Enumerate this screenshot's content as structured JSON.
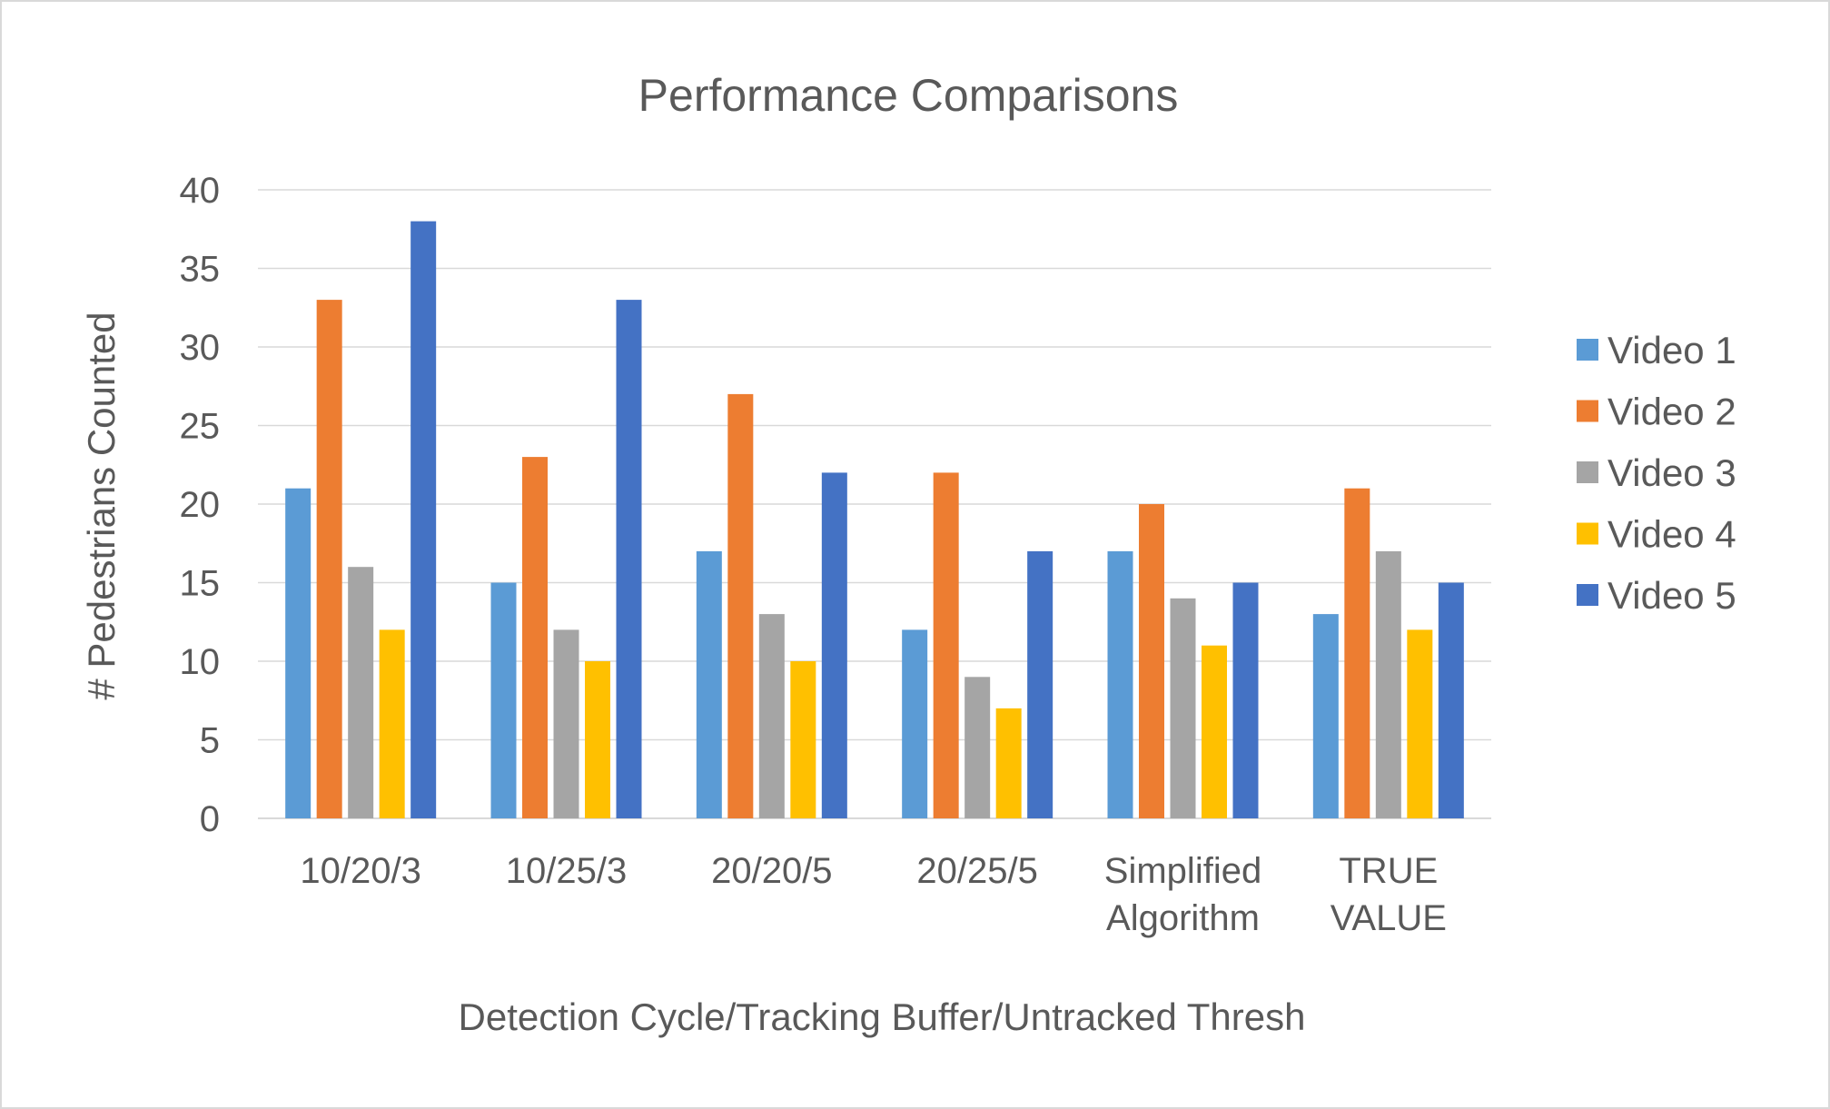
{
  "chart_data": {
    "type": "bar",
    "title": "Performance Comparisons",
    "xlabel": "Detection Cycle/Tracking Buffer/Untracked Thresh",
    "ylabel": "# Pedestrians Counted",
    "ylim": [
      0,
      40
    ],
    "yticks": [
      0,
      5,
      10,
      15,
      20,
      25,
      30,
      35,
      40
    ],
    "grid": true,
    "legend_position": "right",
    "categories": [
      [
        "10/20/3"
      ],
      [
        "10/25/3"
      ],
      [
        "20/20/5"
      ],
      [
        "20/25/5"
      ],
      [
        "Simplified",
        "Algorithm"
      ],
      [
        "TRUE",
        "VALUE"
      ]
    ],
    "series": [
      {
        "name": "Video 1",
        "color": "#5b9bd5",
        "values": [
          21,
          15,
          17,
          12,
          17,
          13
        ]
      },
      {
        "name": "Video 2",
        "color": "#ed7d31",
        "values": [
          33,
          23,
          27,
          22,
          20,
          21
        ]
      },
      {
        "name": "Video 3",
        "color": "#a5a5a5",
        "values": [
          16,
          12,
          13,
          9,
          14,
          17
        ]
      },
      {
        "name": "Video 4",
        "color": "#ffc000",
        "values": [
          12,
          10,
          10,
          7,
          11,
          12
        ]
      },
      {
        "name": "Video 5",
        "color": "#4472c4",
        "values": [
          38,
          33,
          22,
          17,
          15,
          15
        ]
      }
    ]
  }
}
